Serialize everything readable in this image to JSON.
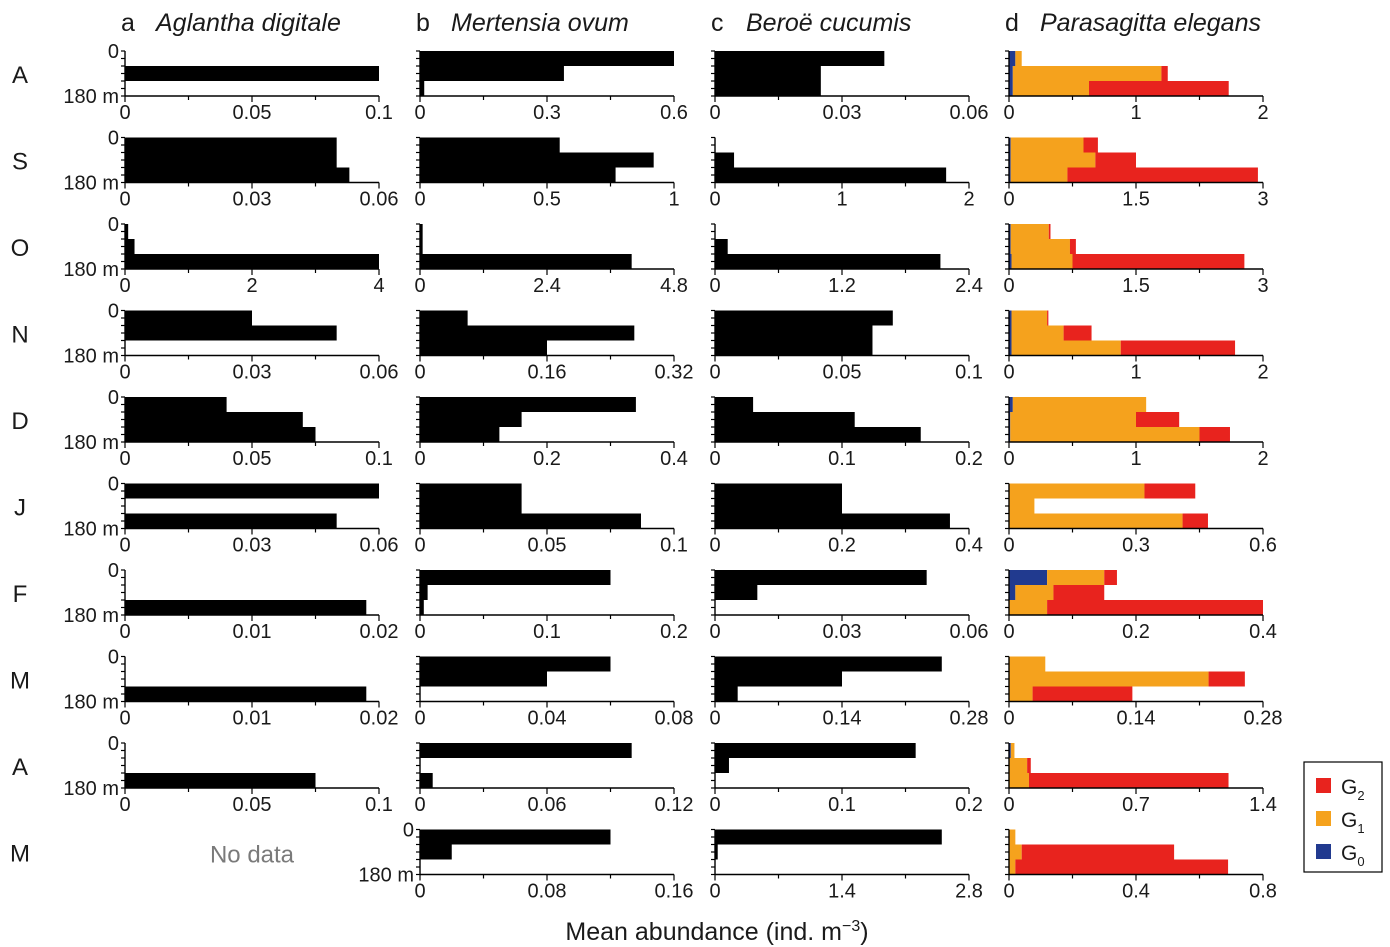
{
  "chart_data": {
    "type": "bar",
    "orientation": "horizontal",
    "stacked": true,
    "xlabel": "Mean abundance (ind. m",
    "xlabel_superscript": "−3",
    "xlabel_suffix": ")",
    "depth_top_label": "0",
    "depth_bottom_label": "180 m",
    "grid": false,
    "legend_position": "right",
    "legend": [
      {
        "key": "G2",
        "main": "G",
        "sub": "2",
        "color": "#e8231e"
      },
      {
        "key": "G1",
        "main": "G",
        "sub": "1",
        "color": "#f5a21d"
      },
      {
        "key": "G0",
        "main": "G",
        "sub": "0",
        "color": "#213a8f"
      }
    ],
    "months": [
      "A",
      "S",
      "O",
      "N",
      "D",
      "J",
      "F",
      "M",
      "A",
      "M"
    ],
    "no_data_label": "No data",
    "panels": [
      {
        "letter": "a",
        "species": "Aglantha digitale",
        "rows": [
          {
            "xmax": 0.1,
            "ticks": [
              "0",
              "0.05",
              "0.1"
            ],
            "bars": [
              0.0,
              0.1,
              0.0
            ]
          },
          {
            "xmax": 0.06,
            "ticks": [
              "0",
              "0.03",
              "0.06"
            ],
            "bars": [
              0.05,
              0.05,
              0.053
            ]
          },
          {
            "xmax": 4,
            "ticks": [
              "0",
              "2",
              "4"
            ],
            "bars": [
              0.05,
              0.15,
              4.0
            ]
          },
          {
            "xmax": 0.06,
            "ticks": [
              "0",
              "0.03",
              "0.06"
            ],
            "bars": [
              0.03,
              0.05,
              0.0
            ]
          },
          {
            "xmax": 0.1,
            "ticks": [
              "0",
              "0.05",
              "0.1"
            ],
            "bars": [
              0.04,
              0.07,
              0.075
            ]
          },
          {
            "xmax": 0.06,
            "ticks": [
              "0",
              "0.03",
              "0.06"
            ],
            "bars": [
              0.06,
              0.0,
              0.05
            ]
          },
          {
            "xmax": 0.02,
            "ticks": [
              "0",
              "0.01",
              "0.02"
            ],
            "bars": [
              0.0,
              0.0,
              0.019
            ]
          },
          {
            "xmax": 0.02,
            "ticks": [
              "0",
              "0.01",
              "0.02"
            ],
            "bars": [
              0.0,
              0.0,
              0.019
            ]
          },
          {
            "xmax": 0.1,
            "ticks": [
              "0",
              "0.05",
              "0.1"
            ],
            "bars": [
              0.0,
              0.0,
              0.075
            ]
          },
          {
            "no_data": true
          }
        ]
      },
      {
        "letter": "b",
        "species": "Mertensia ovum",
        "rows": [
          {
            "xmax": 0.6,
            "ticks": [
              "0",
              "0.3",
              "0.6"
            ],
            "bars": [
              0.6,
              0.34,
              0.01
            ]
          },
          {
            "xmax": 1,
            "ticks": [
              "0",
              "0.5",
              "1"
            ],
            "bars": [
              0.55,
              0.92,
              0.77
            ]
          },
          {
            "xmax": 4.8,
            "ticks": [
              "0",
              "2.4",
              "4.8"
            ],
            "bars": [
              0.05,
              0.05,
              4.0
            ]
          },
          {
            "xmax": 0.32,
            "ticks": [
              "0",
              "0.16",
              "0.32"
            ],
            "bars": [
              0.06,
              0.27,
              0.16
            ]
          },
          {
            "xmax": 0.4,
            "ticks": [
              "0",
              "0.2",
              "0.4"
            ],
            "bars": [
              0.34,
              0.16,
              0.125
            ]
          },
          {
            "xmax": 0.1,
            "ticks": [
              "0",
              "0.05",
              "0.1"
            ],
            "bars": [
              0.04,
              0.04,
              0.087
            ]
          },
          {
            "xmax": 0.2,
            "ticks": [
              "0",
              "0.1",
              "0.2"
            ],
            "bars": [
              0.15,
              0.006,
              0.003
            ]
          },
          {
            "xmax": 0.08,
            "ticks": [
              "0",
              "0.04",
              "0.08"
            ],
            "bars": [
              0.06,
              0.04,
              0.0
            ]
          },
          {
            "xmax": 0.12,
            "ticks": [
              "0",
              "0.06",
              "0.12"
            ],
            "bars": [
              0.1,
              0.0,
              0.006
            ]
          },
          {
            "xmax": 0.16,
            "ticks": [
              "0",
              "0.08",
              "0.16"
            ],
            "bars": [
              0.12,
              0.02,
              0.0
            ]
          }
        ]
      },
      {
        "letter": "c",
        "species": "Beroë cucumis",
        "rows": [
          {
            "xmax": 0.06,
            "ticks": [
              "0",
              "0.03",
              "0.06"
            ],
            "bars": [
              0.04,
              0.025,
              0.025
            ]
          },
          {
            "xmax": 2,
            "ticks": [
              "0",
              "1",
              "2"
            ],
            "bars": [
              0.0,
              0.15,
              1.82
            ]
          },
          {
            "xmax": 2.4,
            "ticks": [
              "0",
              "1.2",
              "2.4"
            ],
            "bars": [
              0.0,
              0.12,
              2.13
            ]
          },
          {
            "xmax": 0.1,
            "ticks": [
              "0",
              "0.05",
              "0.1"
            ],
            "bars": [
              0.07,
              0.062,
              0.062
            ]
          },
          {
            "xmax": 0.2,
            "ticks": [
              "0",
              "0.1",
              "0.2"
            ],
            "bars": [
              0.03,
              0.11,
              0.162
            ]
          },
          {
            "xmax": 0.4,
            "ticks": [
              "0",
              "0.2",
              "0.4"
            ],
            "bars": [
              0.2,
              0.2,
              0.37
            ]
          },
          {
            "xmax": 0.06,
            "ticks": [
              "0",
              "0.03",
              "0.06"
            ],
            "bars": [
              0.05,
              0.01,
              0.0
            ]
          },
          {
            "xmax": 0.28,
            "ticks": [
              "0",
              "0.14",
              "0.28"
            ],
            "bars": [
              0.25,
              0.14,
              0.025
            ]
          },
          {
            "xmax": 0.2,
            "ticks": [
              "0",
              "0.1",
              "0.2"
            ],
            "bars": [
              0.158,
              0.011,
              0.0
            ]
          },
          {
            "xmax": 2.8,
            "ticks": [
              "0",
              "1.4",
              "2.8"
            ],
            "bars": [
              2.5,
              0.03,
              0.0
            ]
          }
        ]
      },
      {
        "letter": "d",
        "species": "Parasagitta elegans",
        "stacked": true,
        "rows": [
          {
            "xmax": 2,
            "ticks": [
              "0",
              "1",
              "2"
            ],
            "bars": [
              {
                "G0": 0.05,
                "G1": 0.05,
                "G2": 0.0
              },
              {
                "G0": 0.03,
                "G1": 1.17,
                "G2": 0.05
              },
              {
                "G0": 0.03,
                "G1": 0.6,
                "G2": 1.1
              }
            ]
          },
          {
            "xmax": 3,
            "ticks": [
              "0",
              "1.5",
              "3"
            ],
            "bars": [
              {
                "G0": 0.02,
                "G1": 0.86,
                "G2": 0.17
              },
              {
                "G0": 0.02,
                "G1": 1.0,
                "G2": 0.48
              },
              {
                "G0": 0.02,
                "G1": 0.67,
                "G2": 2.25
              }
            ]
          },
          {
            "xmax": 3,
            "ticks": [
              "0",
              "1.5",
              "3"
            ],
            "bars": [
              {
                "G0": 0.02,
                "G1": 0.45,
                "G2": 0.02
              },
              {
                "G0": 0.02,
                "G1": 0.7,
                "G2": 0.07
              },
              {
                "G0": 0.03,
                "G1": 0.72,
                "G2": 2.03
              }
            ]
          },
          {
            "xmax": 2,
            "ticks": [
              "0",
              "1",
              "2"
            ],
            "bars": [
              {
                "G0": 0.02,
                "G1": 0.28,
                "G2": 0.01
              },
              {
                "G0": 0.02,
                "G1": 0.41,
                "G2": 0.22
              },
              {
                "G0": 0.02,
                "G1": 0.86,
                "G2": 0.9
              }
            ]
          },
          {
            "xmax": 2,
            "ticks": [
              "0",
              "1",
              "2"
            ],
            "bars": [
              {
                "G0": 0.03,
                "G1": 1.05,
                "G2": 0.0
              },
              {
                "G0": 0.01,
                "G1": 0.99,
                "G2": 0.34
              },
              {
                "G0": 0.01,
                "G1": 1.49,
                "G2": 0.24
              }
            ]
          },
          {
            "xmax": 0.6,
            "ticks": [
              "0",
              "0.3",
              "0.6"
            ],
            "bars": [
              {
                "G0": 0.0,
                "G1": 0.32,
                "G2": 0.12
              },
              {
                "G0": 0.0,
                "G1": 0.06,
                "G2": 0.0
              },
              {
                "G0": 0.0,
                "G1": 0.41,
                "G2": 0.06
              }
            ]
          },
          {
            "xmax": 0.4,
            "ticks": [
              "0",
              "0.2",
              "0.4"
            ],
            "bars": [
              {
                "G0": 0.06,
                "G1": 0.09,
                "G2": 0.02
              },
              {
                "G0": 0.01,
                "G1": 0.06,
                "G2": 0.08
              },
              {
                "G0": 0.0,
                "G1": 0.06,
                "G2": 0.34
              }
            ]
          },
          {
            "xmax": 0.28,
            "ticks": [
              "0",
              "0.14",
              "0.28"
            ],
            "bars": [
              {
                "G0": 0.0,
                "G1": 0.04,
                "G2": 0.0
              },
              {
                "G0": 0.0,
                "G1": 0.22,
                "G2": 0.04
              },
              {
                "G0": 0.0,
                "G1": 0.026,
                "G2": 0.11
              }
            ]
          },
          {
            "xmax": 1.4,
            "ticks": [
              "0",
              "0.7",
              "1.4"
            ],
            "bars": [
              {
                "G0": 0.01,
                "G1": 0.02,
                "G2": 0.0
              },
              {
                "G0": 0.0,
                "G1": 0.1,
                "G2": 0.02
              },
              {
                "G0": 0.0,
                "G1": 0.11,
                "G2": 1.1
              }
            ]
          },
          {
            "xmax": 0.8,
            "ticks": [
              "0",
              "0.4",
              "0.8"
            ],
            "bars": [
              {
                "G0": 0.0,
                "G1": 0.02,
                "G2": 0.0
              },
              {
                "G0": 0.0,
                "G1": 0.04,
                "G2": 0.48
              },
              {
                "G0": 0.0,
                "G1": 0.02,
                "G2": 0.67
              }
            ]
          }
        ]
      }
    ]
  }
}
